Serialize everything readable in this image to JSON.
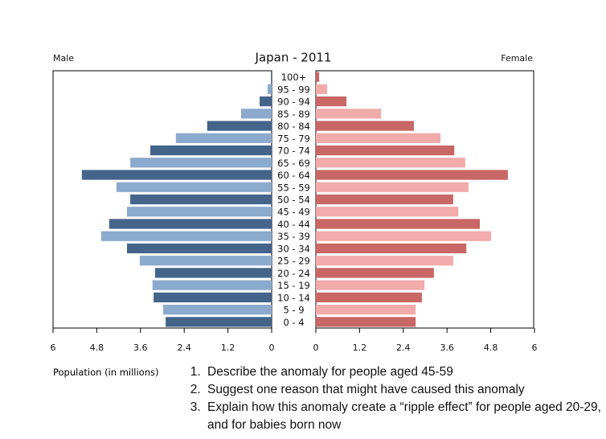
{
  "chart_data": {
    "type": "pyramid",
    "title": "Japan - 2011",
    "xlabel": "Population (in millions)",
    "categories": [
      "0 - 4",
      "5 - 9",
      "10 - 14",
      "15 - 19",
      "20 - 24",
      "25 - 29",
      "30 - 34",
      "35 - 39",
      "40 - 44",
      "45 - 49",
      "50 - 54",
      "55 - 59",
      "60 - 64",
      "65 - 69",
      "70 - 74",
      "75 - 79",
      "80 - 84",
      "85 - 89",
      "90 - 94",
      "95 - 99",
      "100+"
    ],
    "series": [
      {
        "name": "Male",
        "colors": [
          "#44648a",
          "#8caacd"
        ],
        "values": [
          2.91,
          2.98,
          3.24,
          3.27,
          3.2,
          3.62,
          3.97,
          4.68,
          4.46,
          3.97,
          3.88,
          4.26,
          5.21,
          3.88,
          3.33,
          2.63,
          1.77,
          0.84,
          0.33,
          0.11,
          0.02
        ]
      },
      {
        "name": "Female",
        "colors": [
          "#c96666",
          "#f1abaa"
        ],
        "values": [
          2.74,
          2.74,
          2.91,
          2.98,
          3.24,
          3.77,
          4.13,
          4.81,
          4.5,
          3.91,
          3.77,
          4.19,
          5.27,
          4.1,
          3.8,
          3.42,
          2.69,
          1.79,
          0.84,
          0.31,
          0.09
        ]
      }
    ],
    "xlim": [
      0,
      6
    ],
    "xticks": [
      0,
      1.2,
      2.4,
      3.6,
      4.8,
      6
    ]
  },
  "questions": [
    "Describe the anomaly for people aged 45-59",
    "Suggest one reason that might have caused this anomaly",
    "Explain how this anomaly create a “ripple effect” for people aged 20-29, and for babies born now"
  ]
}
